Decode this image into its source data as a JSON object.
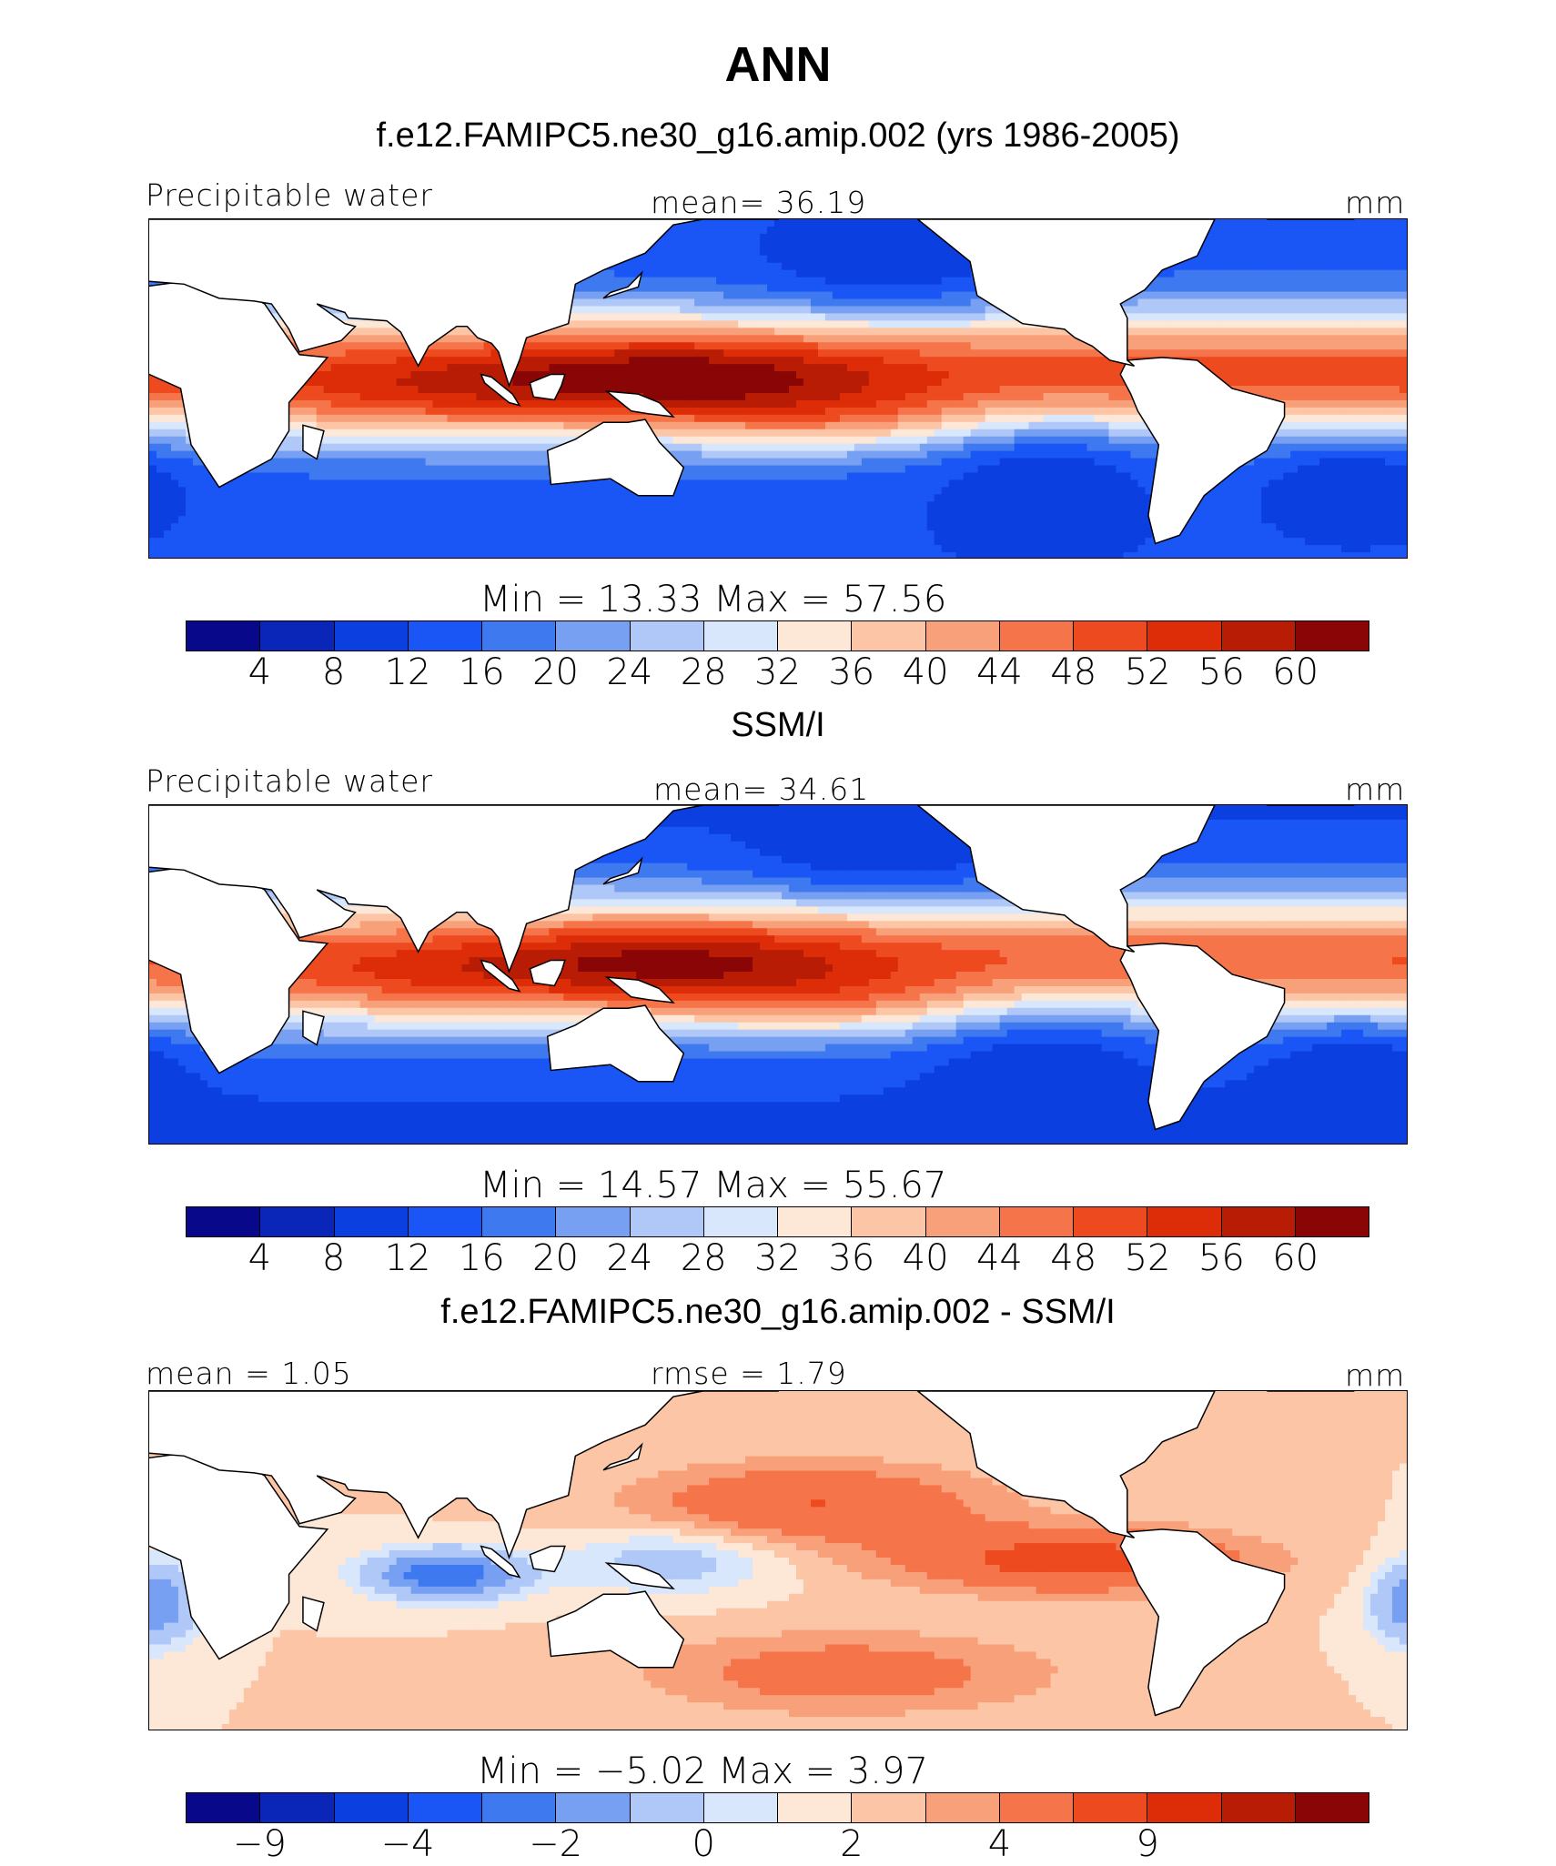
{
  "title": "ANN",
  "palette": [
    "#08088a",
    "#0a26b8",
    "#0b3fe0",
    "#1a55f5",
    "#3e79f0",
    "#77a0f2",
    "#afc8f7",
    "#d8e7fb",
    "#fde7d6",
    "#fbc5a6",
    "#f8a07a",
    "#f5744a",
    "#ee4a20",
    "#dc2c08",
    "#b81c04",
    "#8a0606"
  ],
  "land_color": "#ffffff",
  "coast_color": "#000000",
  "panels": [
    {
      "title": "f.e12.FAMIPC5.ne30_g16.amip.002 (yrs 1986-2005)",
      "left_label": "Precipitable water",
      "center_label": "mean=   36.19",
      "right_label": "mm",
      "minmax_label": "Min  =    13.33  Max  =    57.56",
      "ticks": [
        "4",
        "8",
        "12",
        "16",
        "20",
        "24",
        "28",
        "32",
        "36",
        "40",
        "44",
        "48",
        "52",
        "56",
        "60"
      ]
    },
    {
      "title": "SSM/I",
      "left_label": "Precipitable water",
      "center_label": "mean=   34.61",
      "right_label": "mm",
      "minmax_label": "Min  =    14.57  Max  =    55.67",
      "ticks": [
        "4",
        "8",
        "12",
        "16",
        "20",
        "24",
        "28",
        "32",
        "36",
        "40",
        "44",
        "48",
        "52",
        "56",
        "60"
      ]
    },
    {
      "title": "f.e12.FAMIPC5.ne30_g16.amip.002 - SSM/I",
      "left_label": "mean  =     1.05",
      "center_label": "rmse  =     1.79",
      "right_label": "mm",
      "minmax_label": "Min  =   −5.02  Max  =     3.97",
      "ticks": [
        "−9",
        "",
        "−4",
        "",
        "−2",
        "",
        "0",
        "",
        "2",
        "",
        "4",
        "",
        "9",
        "",
        ""
      ]
    }
  ],
  "chart_data": [
    {
      "type": "heatmap",
      "title": "f.e12.FAMIPC5.ne30_g16.amip.002 (yrs 1986-2005)",
      "variable": "Precipitable water",
      "units": "mm",
      "mean": 36.19,
      "min": 13.33,
      "max": 57.56,
      "colorbar_levels": [
        4,
        8,
        12,
        16,
        20,
        24,
        28,
        32,
        36,
        40,
        44,
        48,
        52,
        56,
        60
      ],
      "lon_range": [
        0,
        360
      ],
      "lat_range": [
        -60,
        60
      ]
    },
    {
      "type": "heatmap",
      "title": "SSM/I",
      "variable": "Precipitable water",
      "units": "mm",
      "mean": 34.61,
      "min": 14.57,
      "max": 55.67,
      "colorbar_levels": [
        4,
        8,
        12,
        16,
        20,
        24,
        28,
        32,
        36,
        40,
        44,
        48,
        52,
        56,
        60
      ],
      "lon_range": [
        0,
        360
      ],
      "lat_range": [
        -60,
        60
      ]
    },
    {
      "type": "heatmap",
      "title": "f.e12.FAMIPC5.ne30_g16.amip.002 - SSM/I",
      "units": "mm",
      "mean": 1.05,
      "rmse": 1.79,
      "min": -5.02,
      "max": 3.97,
      "colorbar_levels": [
        -9,
        -4,
        -2,
        0,
        2,
        4,
        9
      ],
      "lon_range": [
        0,
        360
      ],
      "lat_range": [
        -60,
        60
      ]
    }
  ]
}
